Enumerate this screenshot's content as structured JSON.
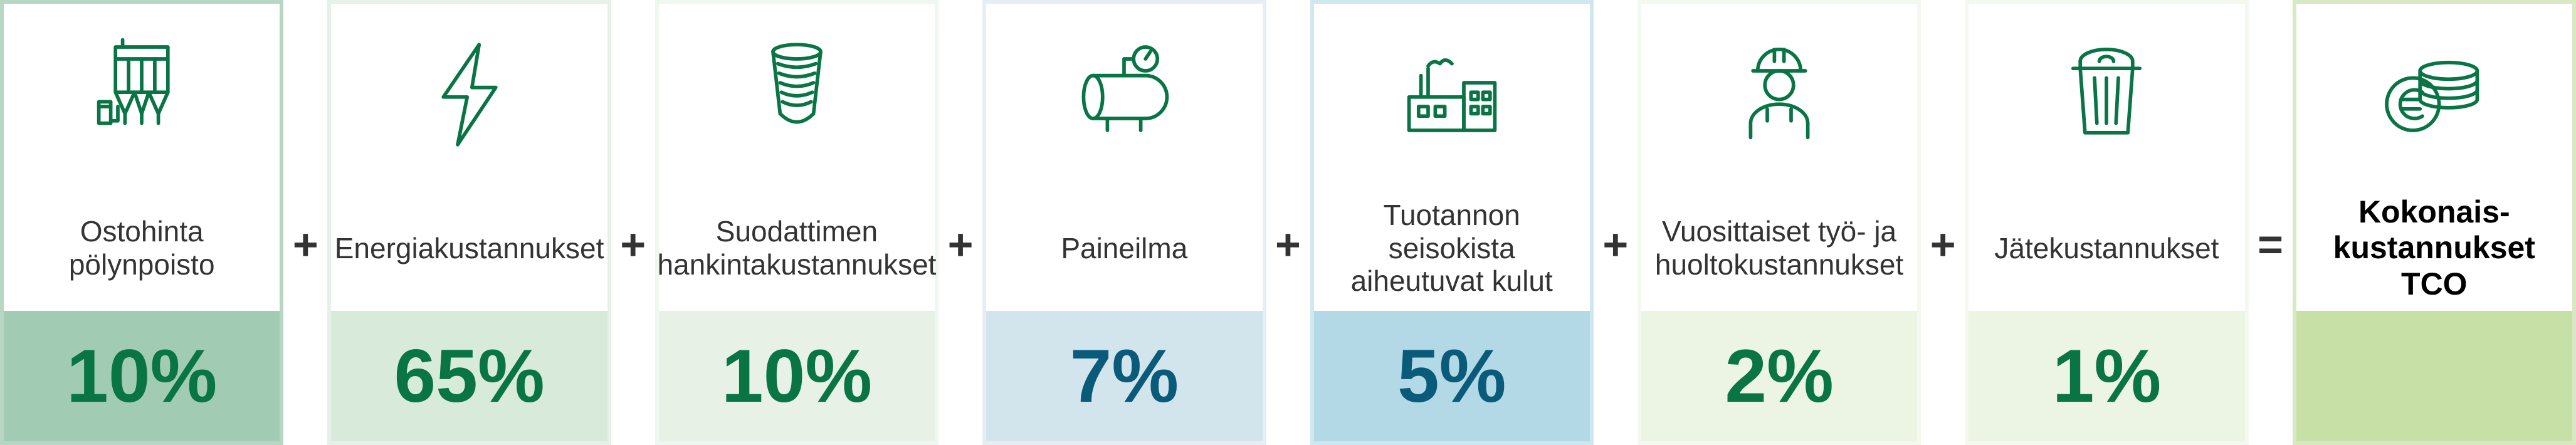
{
  "icon_stroke": "#097444",
  "operators": {
    "plus": "+",
    "equals": "="
  },
  "items": [
    {
      "label": "Ostohinta pölynpoisto",
      "value": "10%",
      "border": "#b7d7c4",
      "value_bg": "#a2cbb3",
      "value_color": "#097444",
      "value_size": "120px",
      "icon": "dust"
    },
    {
      "label": "Energiakustannukset",
      "value": "65%",
      "border": "#e6f1ea",
      "value_bg": "#d8ead9",
      "value_color": "#097444",
      "value_size": "120px",
      "icon": "bolt"
    },
    {
      "label": "Suodattimen hankintakustannukset",
      "value": "10%",
      "border": "#eff7f1",
      "value_bg": "#e7f1e5",
      "value_color": "#097444",
      "value_size": "120px",
      "icon": "filter"
    },
    {
      "label": "Paineilma",
      "value": "7%",
      "border": "#e6eef4",
      "value_bg": "#d3e5ec",
      "value_color": "#0a5b7a",
      "value_size": "120px",
      "icon": "air"
    },
    {
      "label": "Tuotannon seisokista aiheutuvat kulut",
      "value": "5%",
      "border": "#cfe7ef",
      "value_bg": "#b2d9e5",
      "value_color": "#0a5b7a",
      "value_size": "120px",
      "icon": "factory"
    },
    {
      "label": "Vuosittaiset työ- ja huoltokustannukset",
      "value": "2%",
      "border": "#f4f9f0",
      "value_bg": "#ecf4e4",
      "value_color": "#097444",
      "value_size": "120px",
      "icon": "worker"
    },
    {
      "label": "Jätekustannukset",
      "value": "1%",
      "border": "#f4f9f0",
      "value_bg": "#ecf4e4",
      "value_color": "#097444",
      "value_size": "120px",
      "icon": "bin"
    }
  ],
  "total": {
    "label": "Kokonais-\nkustannukset\nTCO",
    "border": "#d8e8c3",
    "value_bg": "#c7e0a6",
    "icon": "coins"
  }
}
